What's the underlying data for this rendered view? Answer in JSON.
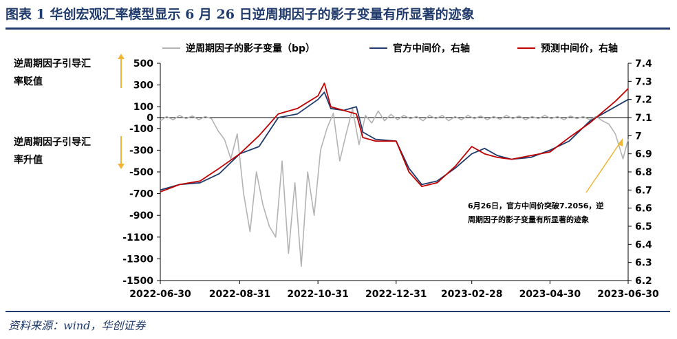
{
  "title": "图表 1   华创宏观汇率模型显示 6 月 26 日逆周期因子的影子变量有所显著的迹象",
  "source": "资料来源：wind，华创证券",
  "side_notes": {
    "top_line1": "逆周期因子引导汇",
    "top_line2": "率贬值",
    "bottom_line1": "逆周期因子引导汇",
    "bottom_line2": "率升值"
  },
  "annotation": {
    "line1": "6月26日，官方中间价突破7.2056，逆",
    "line2": "周期因子的影子变量有所显著的迹象"
  },
  "colors": {
    "shadow": "#b3b3b3",
    "official": "#1f3a6b",
    "forecast": "#c00000",
    "arrow": "#f2b535",
    "rule": "#1f3a6b"
  },
  "chart_data": {
    "type": "line",
    "x_ticks": [
      "2022-06-30",
      "2022-08-31",
      "2022-10-31",
      "2022-12-31",
      "2023-02-28",
      "2023-04-30",
      "2023-06-30"
    ],
    "x_range": [
      "2022-06-30",
      "2023-06-30"
    ],
    "y_left": {
      "ticks": [
        "500",
        "300",
        "100",
        "0",
        "-100",
        "-300",
        "-500",
        "-700",
        "-900",
        "-1100",
        "-1300",
        "-1500"
      ],
      "range": [
        -1500,
        500
      ]
    },
    "y_right": {
      "ticks": [
        "7.4",
        "7.3",
        "7.2",
        "7.1",
        "7",
        "6.9",
        "6.8",
        "6.7",
        "6.6",
        "6.5",
        "6.4",
        "6.3",
        "6.2"
      ],
      "range": [
        6.2,
        7.4
      ]
    },
    "series": [
      {
        "name": "逆周期因子的影子变量（bp）",
        "axis": "left",
        "points": [
          [
            "2022-06-30",
            -30
          ],
          [
            "2022-07-05",
            10
          ],
          [
            "2022-07-10",
            -20
          ],
          [
            "2022-07-15",
            20
          ],
          [
            "2022-07-20",
            -10
          ],
          [
            "2022-07-25",
            15
          ],
          [
            "2022-07-30",
            -20
          ],
          [
            "2022-08-04",
            10
          ],
          [
            "2022-08-09",
            -10
          ],
          [
            "2022-08-14",
            -120
          ],
          [
            "2022-08-19",
            -200
          ],
          [
            "2022-08-24",
            -380
          ],
          [
            "2022-08-29",
            -150
          ],
          [
            "2022-09-03",
            -700
          ],
          [
            "2022-09-08",
            -1050
          ],
          [
            "2022-09-13",
            -500
          ],
          [
            "2022-09-18",
            -800
          ],
          [
            "2022-09-23",
            -1000
          ],
          [
            "2022-09-28",
            -1100
          ],
          [
            "2022-10-03",
            -400
          ],
          [
            "2022-10-08",
            -1250
          ],
          [
            "2022-10-13",
            -600
          ],
          [
            "2022-10-18",
            -1370
          ],
          [
            "2022-10-23",
            -500
          ],
          [
            "2022-10-28",
            -900
          ],
          [
            "2022-11-02",
            -300
          ],
          [
            "2022-11-07",
            -100
          ],
          [
            "2022-11-12",
            40
          ],
          [
            "2022-11-17",
            -400
          ],
          [
            "2022-11-22",
            -150
          ],
          [
            "2022-11-27",
            80
          ],
          [
            "2022-12-02",
            -250
          ],
          [
            "2022-12-07",
            20
          ],
          [
            "2022-12-12",
            -50
          ],
          [
            "2022-12-17",
            60
          ],
          [
            "2022-12-22",
            -30
          ],
          [
            "2022-12-27",
            30
          ],
          [
            "2023-01-01",
            -20
          ],
          [
            "2023-01-06",
            20
          ],
          [
            "2023-01-11",
            -10
          ],
          [
            "2023-01-16",
            10
          ],
          [
            "2023-01-21",
            -30
          ],
          [
            "2023-01-26",
            20
          ],
          [
            "2023-01-31",
            -10
          ],
          [
            "2023-02-05",
            20
          ],
          [
            "2023-02-10",
            -30
          ],
          [
            "2023-02-15",
            10
          ],
          [
            "2023-02-20",
            -20
          ],
          [
            "2023-02-25",
            20
          ],
          [
            "2023-03-02",
            -10
          ],
          [
            "2023-03-07",
            15
          ],
          [
            "2023-03-12",
            -20
          ],
          [
            "2023-03-17",
            10
          ],
          [
            "2023-03-22",
            -15
          ],
          [
            "2023-03-27",
            20
          ],
          [
            "2023-04-01",
            -10
          ],
          [
            "2023-04-06",
            15
          ],
          [
            "2023-04-11",
            -20
          ],
          [
            "2023-04-16",
            10
          ],
          [
            "2023-04-21",
            -10
          ],
          [
            "2023-04-26",
            20
          ],
          [
            "2023-05-01",
            -10
          ],
          [
            "2023-05-06",
            10
          ],
          [
            "2023-05-11",
            -20
          ],
          [
            "2023-05-16",
            15
          ],
          [
            "2023-05-21",
            -10
          ],
          [
            "2023-05-26",
            10
          ],
          [
            "2023-05-31",
            -20
          ],
          [
            "2023-06-05",
            10
          ],
          [
            "2023-06-10",
            -30
          ],
          [
            "2023-06-15",
            -60
          ],
          [
            "2023-06-20",
            -150
          ],
          [
            "2023-06-26",
            -380
          ],
          [
            "2023-06-30",
            -200
          ]
        ]
      },
      {
        "name": "官方中间价，右轴",
        "axis": "right",
        "points": [
          [
            "2022-06-30",
            6.7
          ],
          [
            "2022-07-15",
            6.73
          ],
          [
            "2022-07-31",
            6.74
          ],
          [
            "2022-08-15",
            6.79
          ],
          [
            "2022-08-31",
            6.9
          ],
          [
            "2022-09-15",
            6.94
          ],
          [
            "2022-09-30",
            7.1
          ],
          [
            "2022-10-15",
            7.12
          ],
          [
            "2022-10-31",
            7.2
          ],
          [
            "2022-11-05",
            7.24
          ],
          [
            "2022-11-10",
            7.15
          ],
          [
            "2022-11-20",
            7.14
          ],
          [
            "2022-11-30",
            7.16
          ],
          [
            "2022-12-05",
            7.02
          ],
          [
            "2022-12-15",
            6.98
          ],
          [
            "2022-12-31",
            6.97
          ],
          [
            "2023-01-10",
            6.82
          ],
          [
            "2023-01-20",
            6.73
          ],
          [
            "2023-02-01",
            6.75
          ],
          [
            "2023-02-15",
            6.82
          ],
          [
            "2023-02-28",
            6.9
          ],
          [
            "2023-03-10",
            6.93
          ],
          [
            "2023-03-20",
            6.89
          ],
          [
            "2023-03-31",
            6.87
          ],
          [
            "2023-04-15",
            6.88
          ],
          [
            "2023-04-30",
            6.92
          ],
          [
            "2023-05-15",
            6.97
          ],
          [
            "2023-05-31",
            7.08
          ],
          [
            "2023-06-10",
            7.12
          ],
          [
            "2023-06-20",
            7.16
          ],
          [
            "2023-06-30",
            7.2
          ]
        ]
      },
      {
        "name": "预测中间价，右轴",
        "axis": "right",
        "points": [
          [
            "2022-06-30",
            6.69
          ],
          [
            "2022-07-15",
            6.73
          ],
          [
            "2022-07-31",
            6.75
          ],
          [
            "2022-08-15",
            6.82
          ],
          [
            "2022-08-31",
            6.9
          ],
          [
            "2022-09-15",
            7.0
          ],
          [
            "2022-09-30",
            7.12
          ],
          [
            "2022-10-15",
            7.15
          ],
          [
            "2022-10-31",
            7.22
          ],
          [
            "2022-11-05",
            7.29
          ],
          [
            "2022-11-10",
            7.16
          ],
          [
            "2022-11-20",
            7.14
          ],
          [
            "2022-11-30",
            7.12
          ],
          [
            "2022-12-05",
            6.99
          ],
          [
            "2022-12-15",
            6.97
          ],
          [
            "2022-12-31",
            6.97
          ],
          [
            "2023-01-10",
            6.8
          ],
          [
            "2023-01-20",
            6.72
          ],
          [
            "2023-02-01",
            6.74
          ],
          [
            "2023-02-15",
            6.83
          ],
          [
            "2023-02-28",
            6.94
          ],
          [
            "2023-03-10",
            6.9
          ],
          [
            "2023-03-20",
            6.88
          ],
          [
            "2023-03-31",
            6.87
          ],
          [
            "2023-04-15",
            6.89
          ],
          [
            "2023-04-30",
            6.91
          ],
          [
            "2023-05-15",
            6.99
          ],
          [
            "2023-05-31",
            7.07
          ],
          [
            "2023-06-10",
            7.13
          ],
          [
            "2023-06-20",
            7.19
          ],
          [
            "2023-06-30",
            7.26
          ]
        ]
      }
    ]
  }
}
